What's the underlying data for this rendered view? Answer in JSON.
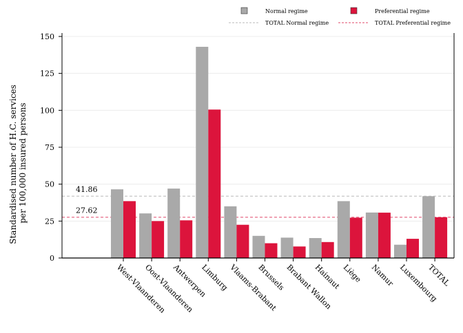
{
  "chart_data": {
    "type": "bar",
    "ylabel": "Standardised number of H.C. services\nper 100,000 insured persons",
    "ylim": [
      0,
      150
    ],
    "yticks": [
      0,
      25,
      50,
      75,
      100,
      125,
      150
    ],
    "grid": true,
    "legend_position": "top-right",
    "categories": [
      "West-Vlaanderen",
      "Oost-Vlaanderen",
      "Antwerpen",
      "Limburg",
      "Vlaams-Brabant",
      "Brussels",
      "Brabant Wallon",
      "Hainaut",
      "Liège",
      "Namur",
      "Luxembourg",
      "TOTAL"
    ],
    "series": [
      {
        "name": "Normal regime",
        "color": "#a9a9a9",
        "values": [
          46.5,
          30.2,
          47.0,
          143.0,
          35.0,
          15.0,
          13.8,
          13.5,
          38.5,
          30.8,
          9.0,
          41.86
        ]
      },
      {
        "name": "Preferential regime",
        "color": "#dc143c",
        "values": [
          38.5,
          25.0,
          25.5,
          100.5,
          22.5,
          10.0,
          7.8,
          10.8,
          27.3,
          30.7,
          13.0,
          27.62
        ]
      }
    ],
    "reference_lines": [
      {
        "name": "TOTAL Normal regime",
        "value": 41.86,
        "label": "41.86",
        "color": "#b8b8b8"
      },
      {
        "name": "TOTAL Preferential regime",
        "value": 27.62,
        "label": "27.62",
        "color": "#e0486a"
      }
    ]
  }
}
